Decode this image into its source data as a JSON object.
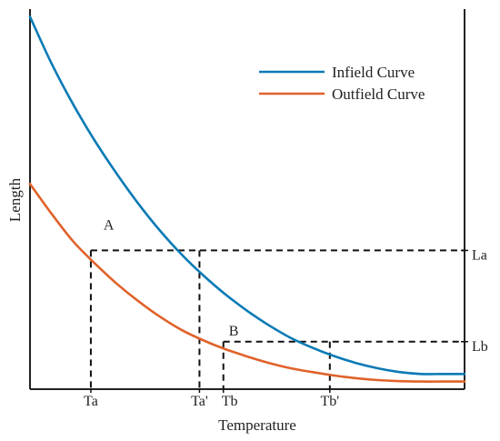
{
  "chart_data": {
    "type": "line",
    "title": "",
    "xlabel": "Temperature",
    "ylabel": "Length",
    "xlim": [
      0,
      1
    ],
    "ylim": [
      0,
      1
    ],
    "grid": false,
    "legend_position": "top-right",
    "series": [
      {
        "name": "Infield Curve",
        "color": "#0a7ab5",
        "x": [
          0,
          0.05,
          0.1,
          0.15,
          0.2,
          0.25,
          0.3,
          0.35,
          0.4,
          0.45,
          0.5,
          0.55,
          0.6,
          0.65,
          0.7,
          0.75,
          0.8,
          0.85,
          0.9,
          0.95,
          1.0
        ],
        "y": [
          0.98,
          0.856,
          0.748,
          0.652,
          0.566,
          0.487,
          0.416,
          0.353,
          0.298,
          0.249,
          0.206,
          0.168,
          0.135,
          0.109,
          0.087,
          0.069,
          0.055,
          0.045,
          0.04,
          0.04,
          0.04
        ]
      },
      {
        "name": "Outfield Curve",
        "color": "#e0622a",
        "x": [
          0,
          0.05,
          0.1,
          0.15,
          0.2,
          0.25,
          0.3,
          0.35,
          0.4,
          0.45,
          0.5,
          0.55,
          0.6,
          0.65,
          0.7,
          0.75,
          0.8,
          0.85,
          0.9,
          0.95,
          1.0
        ],
        "y": [
          0.54,
          0.461,
          0.388,
          0.33,
          0.277,
          0.231,
          0.19,
          0.155,
          0.128,
          0.105,
          0.086,
          0.069,
          0.055,
          0.045,
          0.036,
          0.029,
          0.024,
          0.021,
          0.02,
          0.02,
          0.02
        ]
      }
    ],
    "points": [
      {
        "label": "A",
        "x": 0.14,
        "y": 0.365
      },
      {
        "label": "B",
        "x": 0.445,
        "y": 0.125
      }
    ],
    "reference_lines": {
      "La": 0.365,
      "Lb": 0.125
    },
    "x_ticks": [
      {
        "label": "Ta",
        "x": 0.14
      },
      {
        "label": "Ta'",
        "x": 0.39
      },
      {
        "label": "Tb",
        "x": 0.445
      },
      {
        "label": "Tb'",
        "x": 0.69
      }
    ],
    "y_tick_labels": [
      {
        "label": "La",
        "y": 0.365
      },
      {
        "label": "Lb",
        "y": 0.125
      }
    ]
  }
}
